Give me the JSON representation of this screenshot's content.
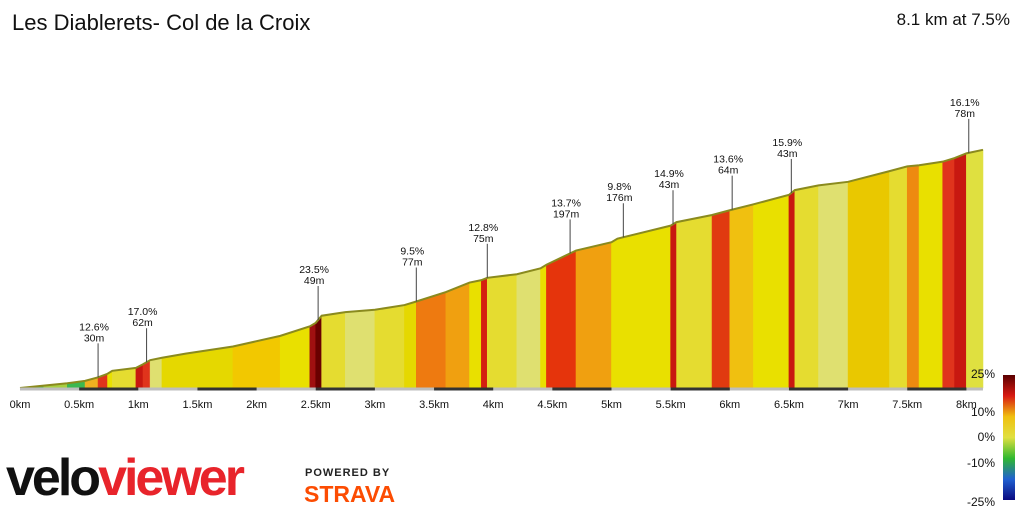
{
  "header": {
    "title": "Les Diablerets- Col de la Croix",
    "summary": "8.1 km at 7.5%"
  },
  "branding": {
    "logo_part1": "velo",
    "logo_part2": "viewer",
    "powered_by": "POWERED BY",
    "strava": "STRAVA"
  },
  "chart_data": {
    "type": "area",
    "x_unit": "km",
    "xlim": [
      0,
      8.1
    ],
    "x_ticks": [
      "0km",
      "0.5km",
      "1km",
      "1.5km",
      "2km",
      "2.5km",
      "3km",
      "3.5km",
      "4km",
      "4.5km",
      "5km",
      "5.5km",
      "6km",
      "6.5km",
      "7km",
      "7.5km",
      "8km"
    ],
    "gradient_scale": {
      "labels": [
        "25%",
        "10%",
        "0%",
        "-10%",
        "-25%"
      ],
      "colors": [
        "#5a0000",
        "#d81a12",
        "#f0c010",
        "#e0e040",
        "#30b830",
        "#2060d0",
        "#0a0a80"
      ]
    },
    "profile": [
      [
        0.0,
        0.0,
        "#5ab04a"
      ],
      [
        0.2,
        2.0,
        "#5ab04a"
      ],
      [
        0.4,
        4.0,
        "#a8cf40"
      ],
      [
        0.55,
        6.0,
        "#3cb850"
      ],
      [
        0.66,
        9.0,
        "#f0b020"
      ],
      [
        0.74,
        12.0,
        "#e0341c"
      ],
      [
        0.78,
        14.5,
        "#e9e000"
      ],
      [
        0.98,
        17.0,
        "#e5dc30"
      ],
      [
        1.04,
        20.0,
        "#c81810"
      ],
      [
        1.1,
        23.5,
        "#e0341c"
      ],
      [
        1.2,
        25.5,
        "#dfe070"
      ],
      [
        1.4,
        29.0,
        "#e5d800"
      ],
      [
        1.8,
        35.0,
        "#e5d800"
      ],
      [
        2.2,
        44.0,
        "#f2c800"
      ],
      [
        2.45,
        52.0,
        "#e9e000"
      ],
      [
        2.5,
        55.0,
        "#a01010"
      ],
      [
        2.55,
        61.0,
        "#6a0000"
      ],
      [
        2.75,
        64.0,
        "#e5dc30"
      ],
      [
        3.0,
        66.0,
        "#dfe070"
      ],
      [
        3.25,
        70.0,
        "#e5dc30"
      ],
      [
        3.35,
        73.0,
        "#e5d800"
      ],
      [
        3.6,
        81.0,
        "#ee7a10"
      ],
      [
        3.8,
        89.0,
        "#f0a010"
      ],
      [
        3.9,
        91.0,
        "#e9e000"
      ],
      [
        3.95,
        93.0,
        "#d42010"
      ],
      [
        4.2,
        96.0,
        "#e5dc30"
      ],
      [
        4.4,
        101.0,
        "#dfe070"
      ],
      [
        4.45,
        104.0,
        "#e9e000"
      ],
      [
        4.7,
        116.0,
        "#e5340c"
      ],
      [
        5.0,
        123.0,
        "#f0a010"
      ],
      [
        5.05,
        126.0,
        "#e9e000"
      ],
      [
        5.5,
        137.0,
        "#e9e000"
      ],
      [
        5.55,
        140.0,
        "#c81810"
      ],
      [
        5.85,
        146.0,
        "#e5dc30"
      ],
      [
        6.0,
        150.0,
        "#e03a10"
      ],
      [
        6.2,
        155.0,
        "#f0c010"
      ],
      [
        6.5,
        163.0,
        "#e9e000"
      ],
      [
        6.55,
        167.0,
        "#c81810"
      ],
      [
        6.75,
        171.0,
        "#e5dc30"
      ],
      [
        7.0,
        174.0,
        "#dfe070"
      ],
      [
        7.35,
        183.0,
        "#e9c800"
      ],
      [
        7.5,
        187.0,
        "#e5dc30"
      ],
      [
        7.6,
        188.0,
        "#ee8a10"
      ],
      [
        7.8,
        191.0,
        "#e9e000"
      ],
      [
        7.9,
        194.0,
        "#e0341c"
      ],
      [
        8.0,
        198.0,
        "#c81810"
      ],
      [
        8.14,
        201.0,
        "#dfe040"
      ]
    ],
    "annotations": [
      {
        "x": 0.66,
        "grade": "12.6%",
        "length": "30m"
      },
      {
        "x": 1.07,
        "grade": "17.0%",
        "length": "62m"
      },
      {
        "x": 2.52,
        "grade": "23.5%",
        "length": "49m"
      },
      {
        "x": 3.35,
        "grade": "9.5%",
        "length": "77m"
      },
      {
        "x": 3.95,
        "grade": "12.8%",
        "length": "75m"
      },
      {
        "x": 4.65,
        "grade": "13.7%",
        "length": "197m"
      },
      {
        "x": 5.1,
        "grade": "9.8%",
        "length": "176m"
      },
      {
        "x": 5.52,
        "grade": "14.9%",
        "length": "43m"
      },
      {
        "x": 6.02,
        "grade": "13.6%",
        "length": "64m"
      },
      {
        "x": 6.52,
        "grade": "15.9%",
        "length": "43m"
      },
      {
        "x": 8.02,
        "grade": "16.1%",
        "length": "78m"
      }
    ]
  }
}
